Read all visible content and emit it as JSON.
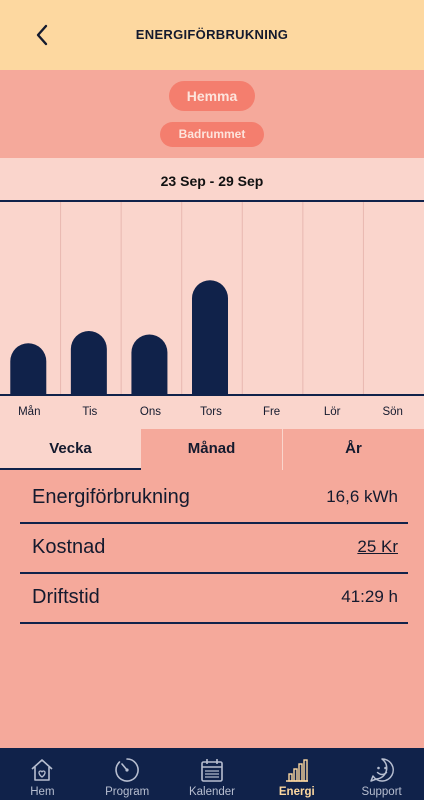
{
  "header": {
    "title": "ENERGIFÖRBRUKNING",
    "back_icon": "chevron-left-icon"
  },
  "filters": {
    "home": "Hemma",
    "room": "Badrummet"
  },
  "date_range": "23 Sep - 29 Sep",
  "chart_data": {
    "type": "bar",
    "categories": [
      "Mån",
      "Tis",
      "Ons",
      "Tors",
      "Fre",
      "Lör",
      "Sön"
    ],
    "values": [
      2.9,
      3.6,
      3.4,
      6.5,
      0,
      0,
      0
    ],
    "ylim": [
      0,
      10
    ],
    "grid": true,
    "bar_color": "#10224a"
  },
  "period_tabs": [
    {
      "label": "Vecka",
      "active": true
    },
    {
      "label": "Månad",
      "active": false
    },
    {
      "label": "År",
      "active": false
    }
  ],
  "stats": {
    "energy": {
      "label": "Energiförbrukning",
      "value": "16,6 kWh"
    },
    "cost": {
      "label": "Kostnad",
      "value": "25 Kr"
    },
    "runtime": {
      "label": "Driftstid",
      "value": "41:29 h"
    }
  },
  "nav": [
    {
      "label": "Hem",
      "icon": "home-heart-icon",
      "active": false
    },
    {
      "label": "Program",
      "icon": "timer-icon",
      "active": false
    },
    {
      "label": "Kalender",
      "icon": "calendar-icon",
      "active": false
    },
    {
      "label": "Energi",
      "icon": "bar-chart-icon",
      "active": true
    },
    {
      "label": "Support",
      "icon": "smiley-chat-icon",
      "active": false
    }
  ],
  "colors": {
    "header_bg": "#fdd8a0",
    "page_bg": "#f5a99b",
    "panel_bg": "#fad5cc",
    "chip_bg": "#f47e6e",
    "navy": "#10224a"
  }
}
